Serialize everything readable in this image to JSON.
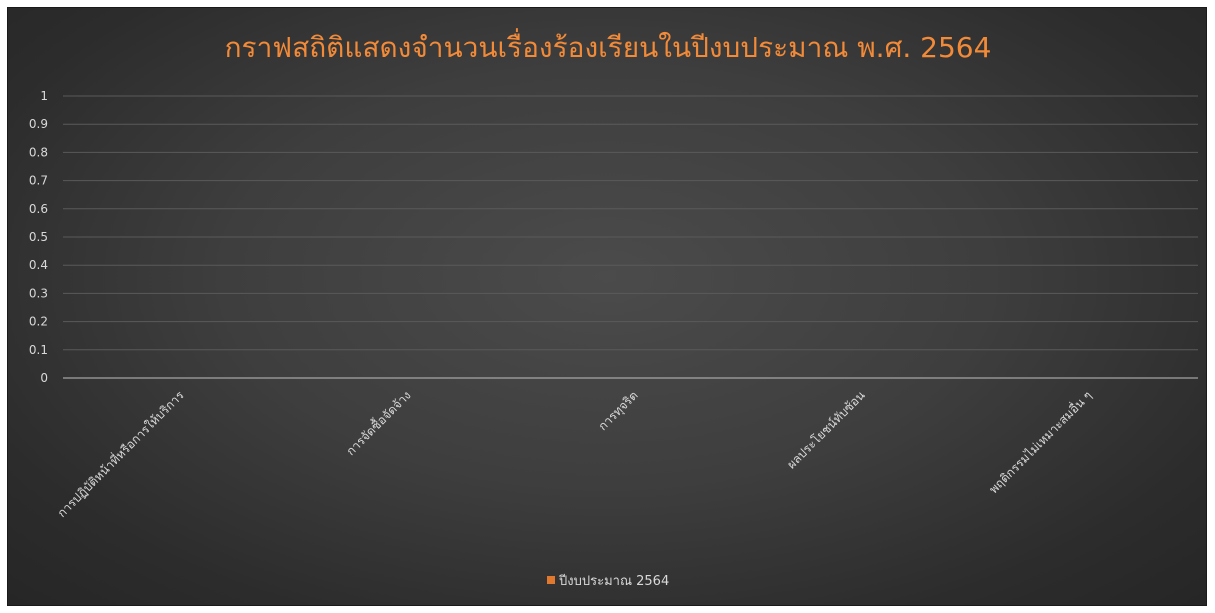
{
  "chart_data": {
    "type": "bar",
    "title": "กราฟสถิติแสดงจำนวนเรื่องร้องเรียนในปีงบประมาณ พ.ศ. 2564",
    "categories": [
      "การปฏิบัติหน้าที่หรือการให้บริการ",
      "การจัดซื้อจัดจ้าง",
      "การทุจริต",
      "ผลประโยชน์ทับซ้อน",
      "พฤติกรรมไม่เหมาะสมอื่น ๆ"
    ],
    "series": [
      {
        "name": "ปีงบประมาณ 2564",
        "values": [
          0,
          0,
          0,
          0,
          0
        ],
        "color": "#e0782e"
      }
    ],
    "yticks": [
      "0",
      "0.1",
      "0.2",
      "0.3",
      "0.4",
      "0.5",
      "0.6",
      "0.7",
      "0.8",
      "0.9",
      "1"
    ],
    "ylim": [
      0,
      1
    ],
    "grid": true,
    "legend_position": "bottom",
    "colors": {
      "title": "#f28a38",
      "gridline": "#5a5a5a",
      "axis": "#bfbfbf",
      "text": "#d9d9d9"
    }
  }
}
